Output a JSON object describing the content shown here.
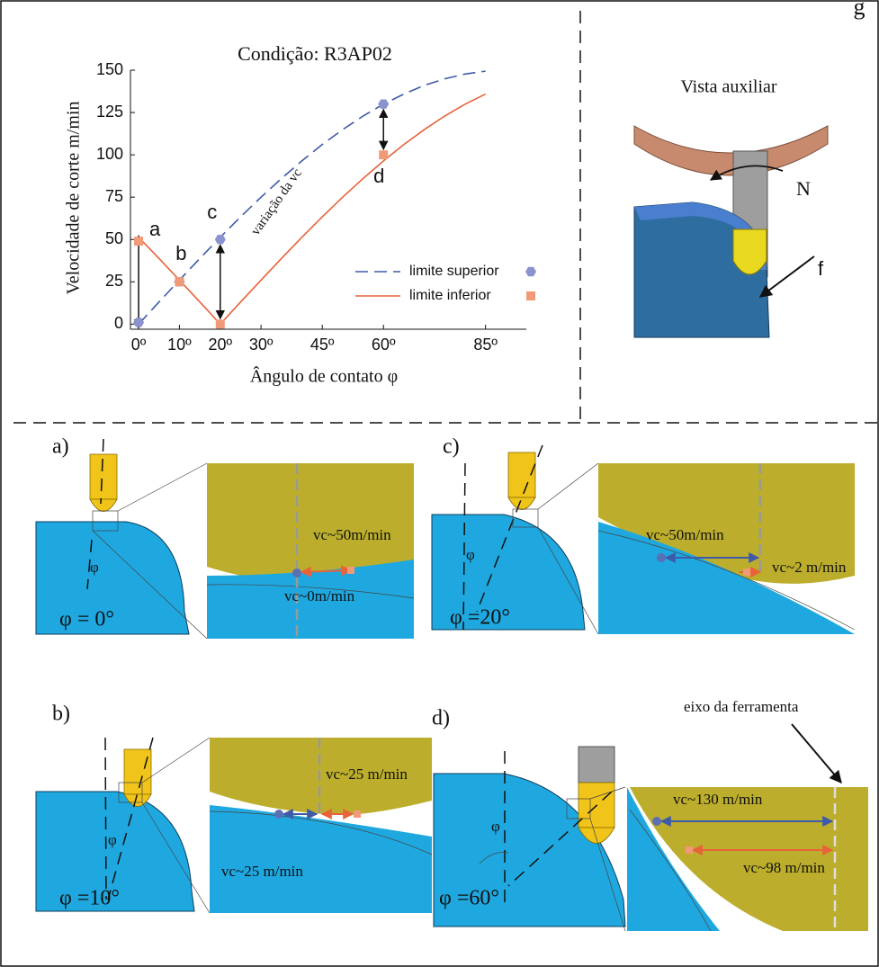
{
  "chart_data": {
    "type": "line",
    "title": "Condição: R3AP02",
    "x_label": "Ângulo de contato φ",
    "y_label": "Velocidade de corte m/min",
    "x": [
      0,
      5,
      10,
      15,
      20,
      25,
      30,
      35,
      40,
      45,
      50,
      55,
      60,
      65,
      70,
      75,
      80,
      85
    ],
    "series": [
      {
        "name": "limite superior",
        "color": "#3f5aa8",
        "dash": true,
        "marker": "hexagon",
        "marker_color": "#8b93cf",
        "values": [
          0,
          13.1,
          26,
          38.8,
          51.3,
          63.4,
          75,
          86,
          96.4,
          106.1,
          114.9,
          122.9,
          129.9,
          135.9,
          141,
          144.9,
          147.7,
          149.4
        ],
        "marker_x": [
          0,
          10,
          20,
          60
        ],
        "marker_values": [
          1,
          25,
          50,
          130
        ]
      },
      {
        "name": "limite inferior",
        "color": "#e8623a",
        "dash": false,
        "marker": "square",
        "marker_color": "#f09a78",
        "values": [
          51.3,
          38.8,
          26,
          13.1,
          0,
          13.1,
          26,
          38.8,
          51.3,
          63.4,
          75,
          86,
          96.4,
          106.1,
          114.9,
          122.9,
          129.9,
          135.9
        ],
        "marker_x": [
          0,
          10,
          20,
          60
        ],
        "marker_values": [
          49,
          25,
          0,
          100
        ]
      }
    ],
    "point_labels": [
      "a",
      "b",
      "c",
      "d"
    ],
    "annotation": "variação da vc",
    "xlim": [
      -2,
      95
    ],
    "ylim": [
      -3,
      150
    ],
    "xticks": [
      {
        "value": 0,
        "label": "0º"
      },
      {
        "value": 10,
        "label": "10º"
      },
      {
        "value": 20,
        "label": "20º"
      },
      {
        "value": 30,
        "label": "30º"
      },
      {
        "value": 45,
        "label": "45º"
      },
      {
        "value": 60,
        "label": "60º"
      },
      {
        "value": 85,
        "label": "85º"
      }
    ],
    "yticks": [
      0,
      25,
      50,
      75,
      100,
      125,
      150
    ],
    "legend": "lower right"
  },
  "fragment": "g",
  "auxiliary_view": {
    "title": "Vista auxiliar",
    "labels": [
      "N",
      "f"
    ]
  },
  "panels": [
    {
      "label": "a)",
      "angle": "φ = 0°",
      "phi": "φ",
      "texts": [
        "vc~50m/min",
        "vc~0m/min"
      ]
    },
    {
      "label": "b)",
      "angle": "φ =10°",
      "phi": "φ",
      "texts": [
        "vc~25 m/min",
        "vc~25 m/min"
      ]
    },
    {
      "label": "c)",
      "angle": "φ =20°",
      "phi": "φ",
      "texts": [
        "vc~50m/min",
        "vc~2 m/min"
      ]
    },
    {
      "label": "d)",
      "angle": "φ =60°",
      "phi": "φ",
      "texts": [
        "vc~130 m/min",
        "vc~98 m/min"
      ]
    }
  ],
  "tool_axis_label": "eixo da ferramenta"
}
